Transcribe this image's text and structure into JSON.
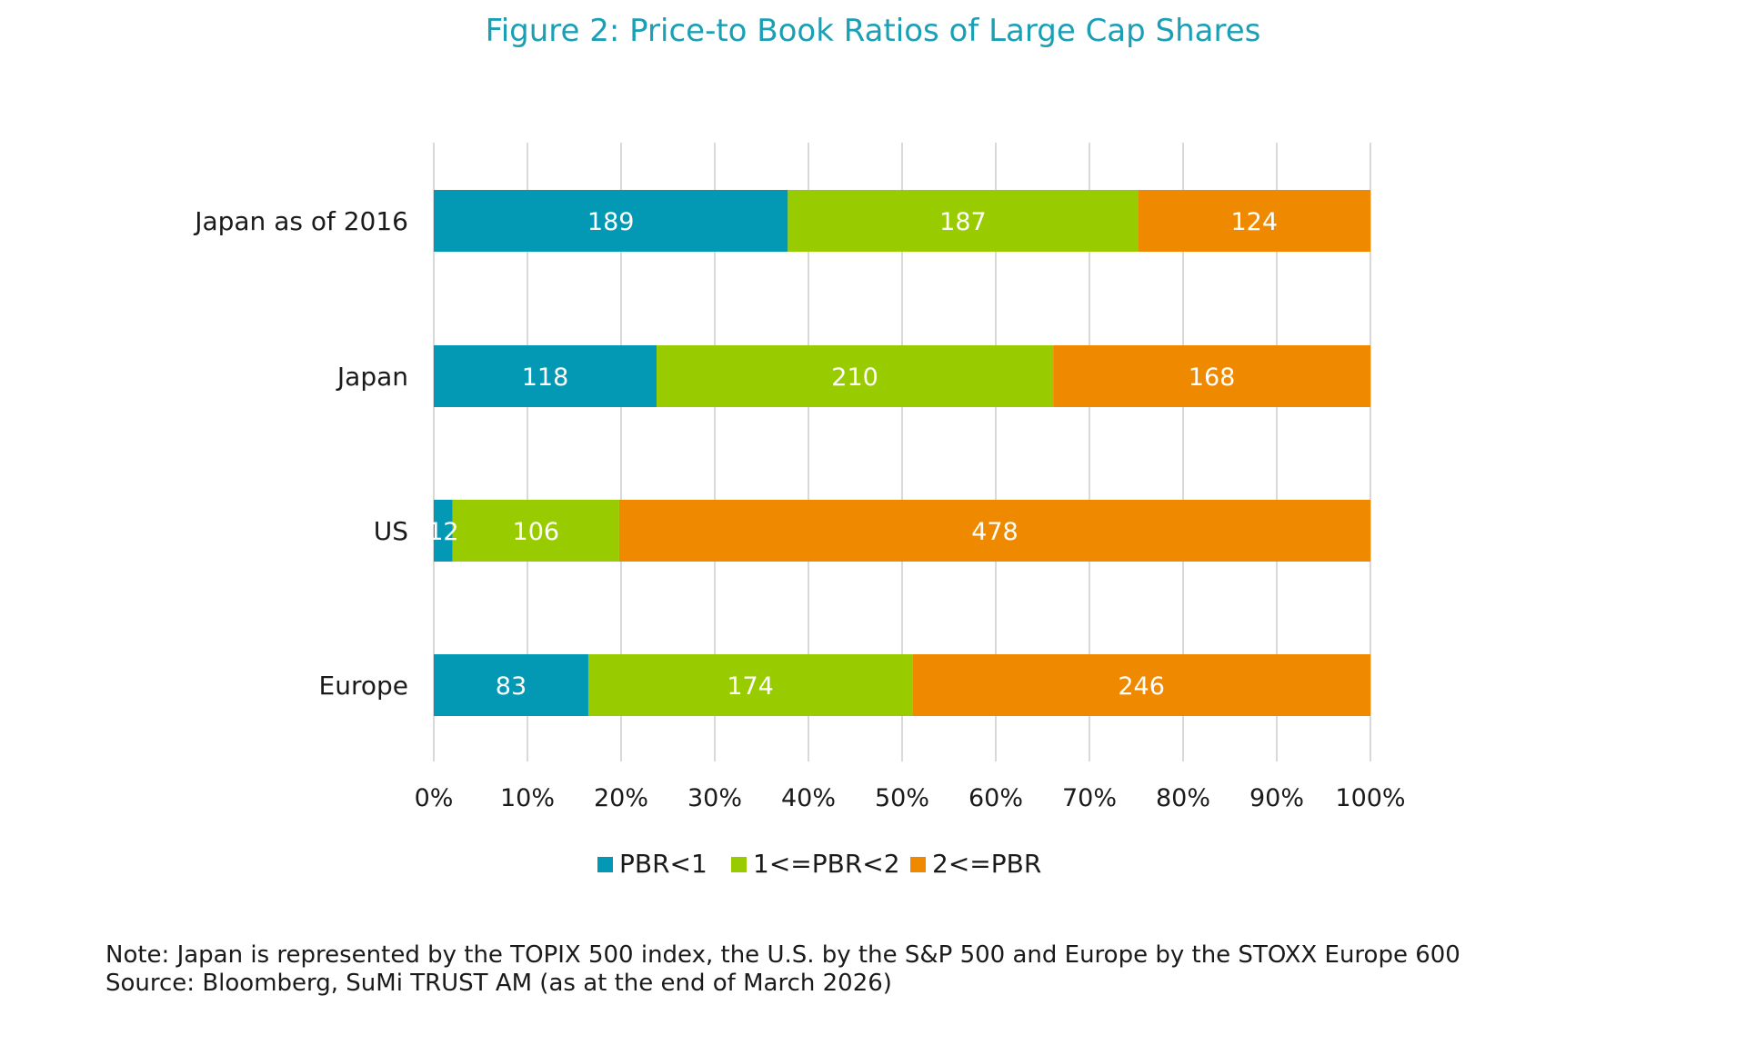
{
  "chart_data": {
    "type": "bar",
    "orientation": "horizontal",
    "stacked": "percent",
    "title": "Figure 2: Price-to Book Ratios of Large Cap Shares",
    "categories": [
      "Japan as of 2016",
      "Japan",
      "US",
      "Europe"
    ],
    "series": [
      {
        "name": "PBR<1",
        "color": "#0399b5",
        "values": [
          189,
          118,
          12,
          83
        ]
      },
      {
        "name": "1<=PBR<2",
        "color": "#99cc00",
        "values": [
          187,
          210,
          106,
          174
        ]
      },
      {
        "name": "2<=PBR",
        "color": "#ef8a00",
        "values": [
          124,
          168,
          478,
          246
        ]
      }
    ],
    "xlim": [
      0,
      100
    ],
    "x_ticks": [
      "0%",
      "10%",
      "20%",
      "30%",
      "40%",
      "50%",
      "60%",
      "70%",
      "80%",
      "90%",
      "100%"
    ],
    "grid": true,
    "legend": "bottom"
  },
  "notes": {
    "note": "Note: Japan is represented by the TOPIX 500 index, the U.S. by the S&P 500 and Europe by the STOXX Europe 600",
    "source": "Source: Bloomberg, SuMi TRUST AM (as at the end of March 2026)"
  }
}
